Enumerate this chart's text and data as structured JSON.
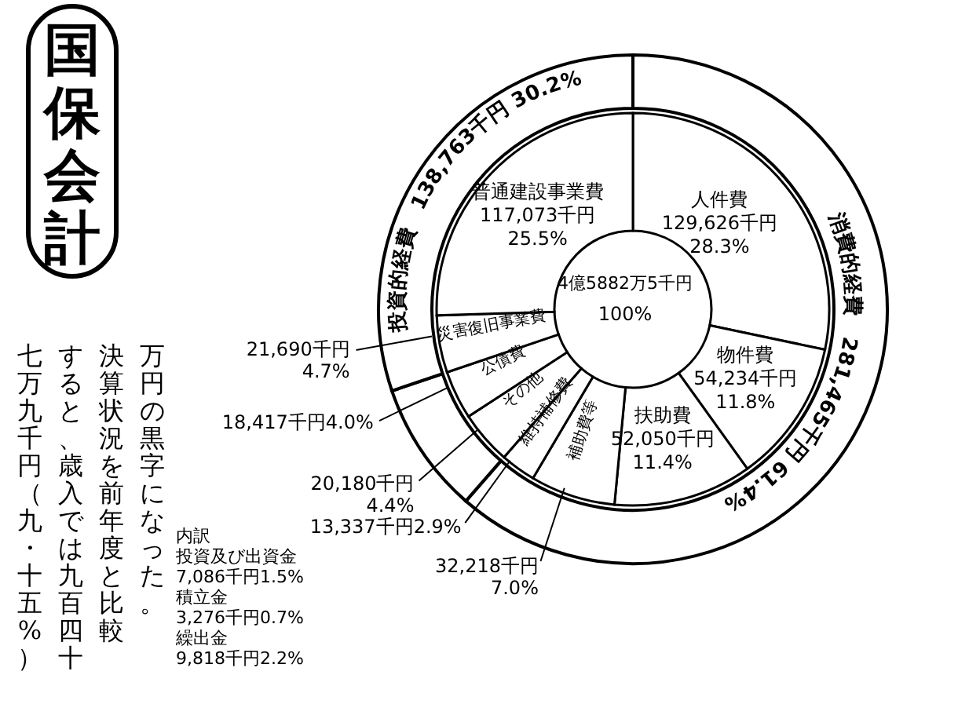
{
  "chart_data": [
    {
      "type": "donut",
      "title": "国保会計",
      "categories": [
        "人件費",
        "物件費",
        "扶助費",
        "補助費等",
        "維持補修費",
        "その他",
        "公債費",
        "災害復旧事業費",
        "普通建設事業費"
      ],
      "values": [
        28.3,
        11.8,
        11.4,
        7.0,
        2.9,
        4.4,
        4.0,
        4.7,
        25.5
      ],
      "value_labels": [
        "129,626千円 28.3%",
        "54,234千円 11.8%",
        "52,050千円 11.4%",
        "32,218千円 7.0%",
        "13,337千円2.9%",
        "20,180千円 4.4%",
        "18,417千円4.0%",
        "21,690千円 4.7%",
        "117,073千円 25.5%"
      ],
      "colors": [
        "#ffffff",
        "#ffffff",
        "#ffffff",
        "#ffffff",
        "#ffffff",
        "#ffffff",
        "#ffffff",
        "#ffffff",
        "#ffffff"
      ],
      "annotations": [
        "4億5882万5千円",
        "100%",
        "内訳",
        "投資及び出資金",
        "7,086千円1.5%",
        "積立金",
        "3,276千円0.7%",
        "繰出金",
        "9,818千円2.2%",
        "万円の黒字になった。",
        "決算状況を前年度と比較",
        "すると、歳入では九百四十",
        "七万九千円（九・十五%）"
      ]
    },
    {
      "type": "donut",
      "categories": [
        "消費的経費",
        null,
        "投資的経費"
      ],
      "values": [
        61.4,
        8.4,
        30.2
      ],
      "value_labels": [
        "281,465千円 61.4%",
        null,
        "138,763千円 30.2%"
      ],
      "colors": [
        "#ffffff",
        "#ffffff",
        "#ffffff"
      ]
    }
  ]
}
